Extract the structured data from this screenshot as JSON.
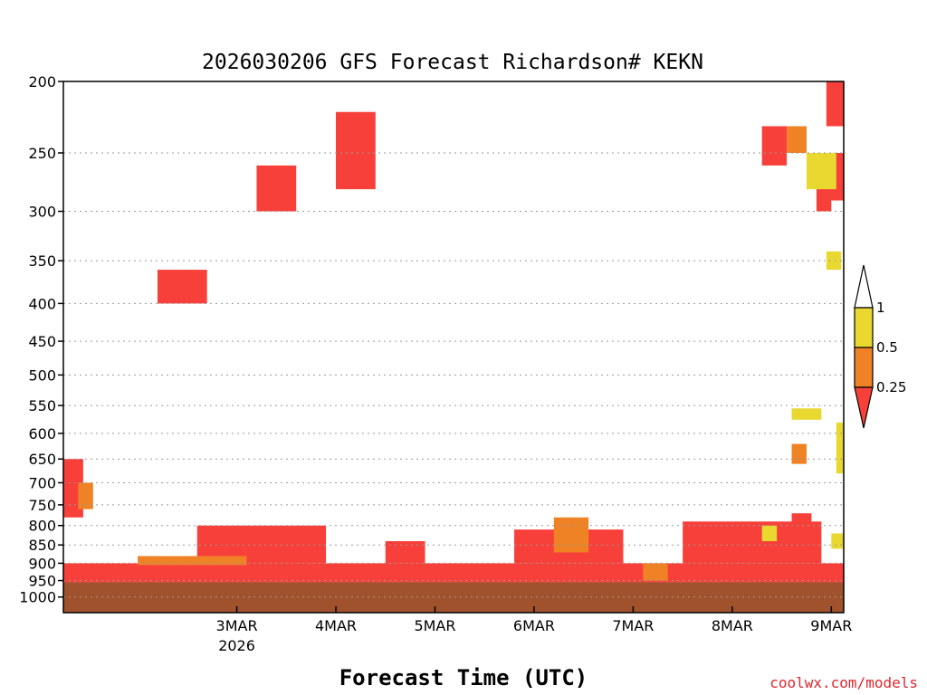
{
  "chart_data": {
    "type": "heatmap",
    "title": "2026030206 GFS Forecast Richardson# KEKN",
    "xlabel": "Forecast Time (UTC)",
    "ylabel": "",
    "x_ticks": [
      {
        "label": "3MAR",
        "sublabel": "2026",
        "day": 1
      },
      {
        "label": "4MAR",
        "day": 2
      },
      {
        "label": "5MAR",
        "day": 3
      },
      {
        "label": "6MAR",
        "day": 4
      },
      {
        "label": "7MAR",
        "day": 5
      },
      {
        "label": "8MAR",
        "day": 6
      },
      {
        "label": "9MAR",
        "day": 7
      }
    ],
    "x_range_days": [
      -0.75,
      7.125
    ],
    "y_ticks": [
      200,
      250,
      300,
      350,
      400,
      450,
      500,
      550,
      600,
      650,
      700,
      750,
      800,
      850,
      900,
      950,
      1000
    ],
    "y_axis_unit": "hPa",
    "y_range": [
      200,
      1050
    ],
    "y_scale": "log",
    "grid": true,
    "colorbar": {
      "labels": [
        "1",
        "0.5",
        "0.25"
      ],
      "bins": [
        {
          "range": "> 1",
          "color": "#ffffff"
        },
        {
          "range": "0.5 - 1",
          "color": "#e8d830"
        },
        {
          "range": "0.25 - 0.5",
          "color": "#f08226"
        },
        {
          "range": "< 0.25",
          "color": "#f8403a"
        }
      ]
    },
    "terrain_color": "#a0522d",
    "surface_pressure": 955,
    "regions": [
      {
        "day0": -0.75,
        "day1": 7.125,
        "p0": 900,
        "p1": 955,
        "cat": "red"
      },
      {
        "day0": 0.6,
        "day1": 1.9,
        "p0": 800,
        "p1": 900,
        "cat": "red"
      },
      {
        "day0": 2.5,
        "day1": 2.9,
        "p0": 840,
        "p1": 900,
        "cat": "red"
      },
      {
        "day0": 3.8,
        "day1": 4.9,
        "p0": 810,
        "p1": 900,
        "cat": "red"
      },
      {
        "day0": 5.5,
        "day1": 6.9,
        "p0": 790,
        "p1": 900,
        "cat": "red"
      },
      {
        "day0": 6.6,
        "day1": 6.8,
        "p0": 770,
        "p1": 800,
        "cat": "red"
      },
      {
        "day0": 0.0,
        "day1": 1.1,
        "p0": 880,
        "p1": 905,
        "cat": "orange"
      },
      {
        "day0": 4.2,
        "day1": 4.55,
        "p0": 780,
        "p1": 870,
        "cat": "orange"
      },
      {
        "day0": 5.1,
        "day1": 5.35,
        "p0": 900,
        "p1": 950,
        "cat": "orange"
      },
      {
        "day0": 6.3,
        "day1": 6.45,
        "p0": 800,
        "p1": 840,
        "cat": "yellow"
      },
      {
        "day0": 7.0,
        "day1": 7.125,
        "p0": 820,
        "p1": 860,
        "cat": "yellow"
      },
      {
        "day0": -0.75,
        "day1": -0.55,
        "p0": 650,
        "p1": 780,
        "cat": "red"
      },
      {
        "day0": -0.6,
        "day1": -0.45,
        "p0": 700,
        "p1": 760,
        "cat": "orange"
      },
      {
        "day0": 6.95,
        "day1": 7.125,
        "p0": 200,
        "p1": 230,
        "cat": "red"
      },
      {
        "day0": 6.95,
        "day1": 7.125,
        "p0": 250,
        "p1": 290,
        "cat": "red"
      },
      {
        "day0": 6.85,
        "day1": 7.0,
        "p0": 270,
        "p1": 300,
        "cat": "red"
      },
      {
        "day0": 6.3,
        "day1": 6.55,
        "p0": 230,
        "p1": 260,
        "cat": "red"
      },
      {
        "day0": 6.55,
        "day1": 6.75,
        "p0": 230,
        "p1": 250,
        "cat": "orange"
      },
      {
        "day0": 6.75,
        "day1": 7.05,
        "p0": 250,
        "p1": 280,
        "cat": "yellow"
      },
      {
        "day0": 6.95,
        "day1": 7.1,
        "p0": 340,
        "p1": 360,
        "cat": "yellow"
      },
      {
        "day0": 1.2,
        "day1": 1.6,
        "p0": 260,
        "p1": 300,
        "cat": "red"
      },
      {
        "day0": 2.0,
        "day1": 2.4,
        "p0": 220,
        "p1": 280,
        "cat": "red"
      },
      {
        "day0": 0.2,
        "day1": 0.7,
        "p0": 360,
        "p1": 400,
        "cat": "red"
      },
      {
        "day0": 7.05,
        "day1": 7.125,
        "p0": 580,
        "p1": 680,
        "cat": "yellow"
      },
      {
        "day0": 6.6,
        "day1": 6.9,
        "p0": 555,
        "p1": 575,
        "cat": "yellow"
      },
      {
        "day0": 6.6,
        "day1": 6.75,
        "p0": 620,
        "p1": 660,
        "cat": "orange"
      }
    ]
  },
  "credit": "coolwx.com/models"
}
